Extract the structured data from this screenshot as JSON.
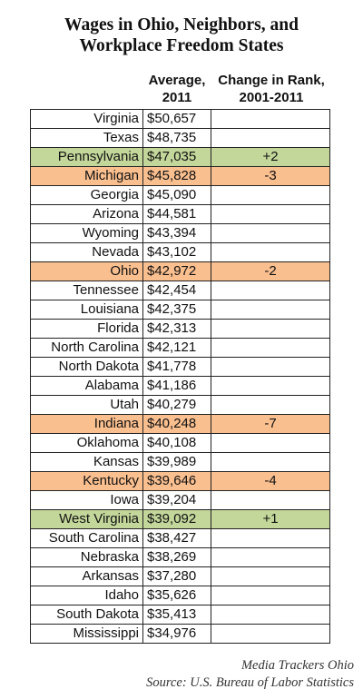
{
  "title": [
    "Wages in Ohio, Neighbors, and",
    "Workplace Freedom States"
  ],
  "headers": {
    "wage": [
      "Average,",
      "2011"
    ],
    "change": [
      "Change in Rank,",
      "2001-2011"
    ]
  },
  "table": {
    "rows": [
      {
        "state": "Virginia",
        "wage": "$50,657"
      },
      {
        "state": "Texas",
        "wage": "$48,735"
      },
      {
        "state": "Pennsylvania",
        "wage": "$47,035",
        "change": "+2",
        "color": "#c4d79b"
      },
      {
        "state": "Michigan",
        "wage": "$45,828",
        "change": "-3",
        "color": "#fabf8f"
      },
      {
        "state": "Georgia",
        "wage": "$45,090"
      },
      {
        "state": "Arizona",
        "wage": "$44,581"
      },
      {
        "state": "Wyoming",
        "wage": "$43,394"
      },
      {
        "state": "Nevada",
        "wage": "$43,102"
      },
      {
        "state": "Ohio",
        "wage": "$42,972",
        "change": "-2",
        "color": "#fabf8f"
      },
      {
        "state": "Tennessee",
        "wage": "$42,454"
      },
      {
        "state": "Louisiana",
        "wage": "$42,375"
      },
      {
        "state": "Florida",
        "wage": "$42,313"
      },
      {
        "state": "North Carolina",
        "wage": "$42,121"
      },
      {
        "state": "North Dakota",
        "wage": "$41,778"
      },
      {
        "state": "Alabama",
        "wage": "$41,186"
      },
      {
        "state": "Utah",
        "wage": "$40,279"
      },
      {
        "state": "Indiana",
        "wage": "$40,248",
        "change": "-7",
        "color": "#fabf8f"
      },
      {
        "state": "Oklahoma",
        "wage": "$40,108"
      },
      {
        "state": "Kansas",
        "wage": "$39,989"
      },
      {
        "state": "Kentucky",
        "wage": "$39,646",
        "change": "-4",
        "color": "#fabf8f"
      },
      {
        "state": "Iowa",
        "wage": "$39,204"
      },
      {
        "state": "West Virginia",
        "wage": "$39,092",
        "change": "+1",
        "color": "#c4d79b"
      },
      {
        "state": "South Carolina",
        "wage": "$38,427"
      },
      {
        "state": "Nebraska",
        "wage": "$38,269"
      },
      {
        "state": "Arkansas",
        "wage": "$37,280"
      },
      {
        "state": "Idaho",
        "wage": "$35,626"
      },
      {
        "state": "South Dakota",
        "wage": "$35,413"
      },
      {
        "state": "Mississippi",
        "wage": "$34,976"
      }
    ]
  },
  "footer": [
    "Media Trackers Ohio",
    "Source: U.S. Bureau of Labor Statistics"
  ]
}
